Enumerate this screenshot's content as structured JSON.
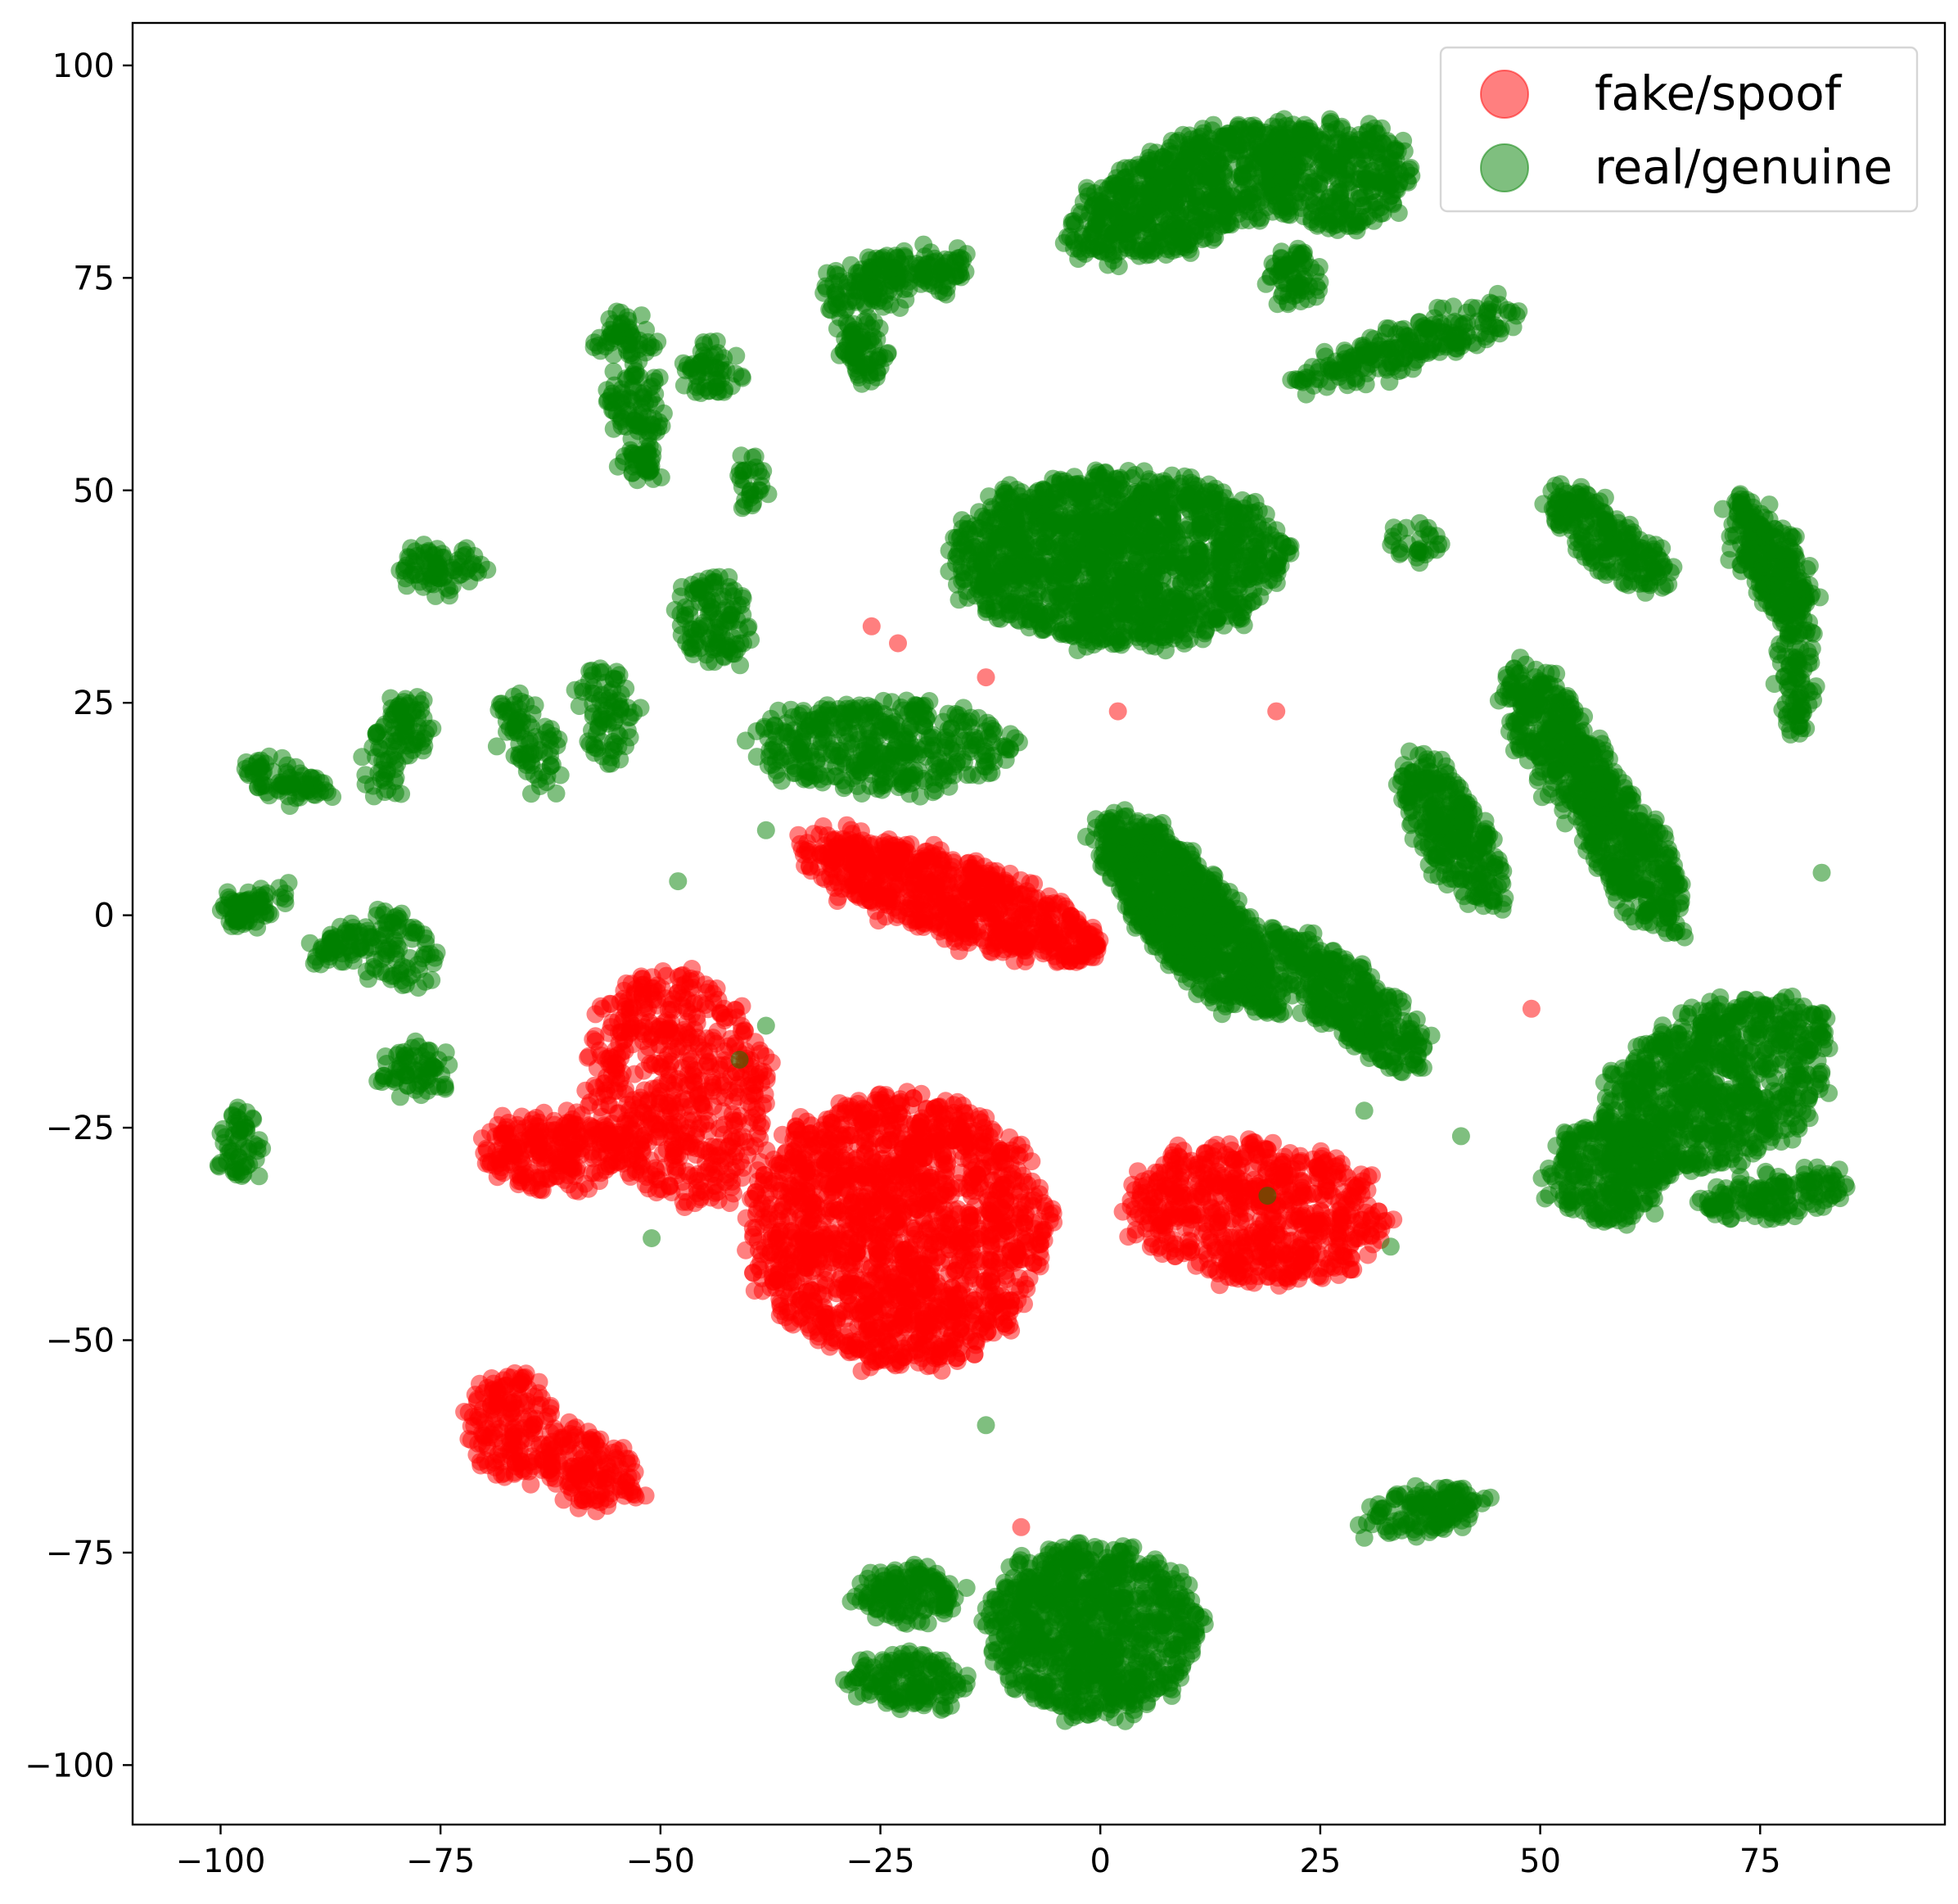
{
  "chart_data": {
    "type": "scatter",
    "title": "",
    "xlabel": "",
    "ylabel": "",
    "xlim": [
      -110,
      96
    ],
    "ylim": [
      -107,
      105
    ],
    "xticks": [
      -100,
      -75,
      -50,
      -25,
      0,
      25,
      50,
      75
    ],
    "yticks": [
      -100,
      -75,
      -50,
      -25,
      0,
      25,
      50,
      75,
      100
    ],
    "xtick_labels": [
      "−100",
      "−75",
      "−50",
      "−25",
      "0",
      "25",
      "50",
      "75"
    ],
    "ytick_labels": [
      "−100",
      "−75",
      "−50",
      "−25",
      "0",
      "25",
      "50",
      "75",
      "100"
    ],
    "grid": false,
    "legend_position": "top-right",
    "series": [
      {
        "name": "fake/spoof",
        "color": "#ff0000",
        "clusters": [
          {
            "cx": -17,
            "cy": 2,
            "rx": 18,
            "ry": 4.5,
            "angle": -20,
            "n": 750
          },
          {
            "cx": -48,
            "cy": -20,
            "rx": 10,
            "ry": 14,
            "angle": 10,
            "n": 600
          },
          {
            "cx": -62,
            "cy": -28,
            "rx": 9,
            "ry": 4.5,
            "angle": 0,
            "n": 260
          },
          {
            "cx": -23,
            "cy": -37,
            "rx": 17,
            "ry": 16,
            "angle": 0,
            "n": 1700
          },
          {
            "cx": 18,
            "cy": -35,
            "rx": 15,
            "ry": 8,
            "angle": -5,
            "n": 700
          },
          {
            "cx": -67,
            "cy": -60,
            "rx": 5,
            "ry": 6,
            "angle": 0,
            "n": 180
          },
          {
            "cx": -58,
            "cy": -65,
            "rx": 6,
            "ry": 4,
            "angle": -30,
            "n": 160
          }
        ],
        "outliers": [
          [
            -26,
            34
          ],
          [
            -23,
            32
          ],
          [
            -13,
            28
          ],
          [
            2,
            24
          ],
          [
            20,
            24
          ],
          [
            49,
            -11
          ],
          [
            -9,
            -72
          ]
        ]
      },
      {
        "name": "real/genuine",
        "color": "#008000",
        "clusters": [
          {
            "cx": 10,
            "cy": 85,
            "rx": 15,
            "ry": 6,
            "angle": 25,
            "n": 700
          },
          {
            "cx": 27,
            "cy": 87,
            "rx": 9,
            "ry": 6,
            "angle": 0,
            "n": 350
          },
          {
            "cx": 35,
            "cy": 67,
            "rx": 14,
            "ry": 2.2,
            "angle": 20,
            "n": 220
          },
          {
            "cx": 22,
            "cy": 75,
            "rx": 3,
            "ry": 3,
            "angle": 0,
            "n": 70
          },
          {
            "cx": 2,
            "cy": 42,
            "rx": 19,
            "ry": 10,
            "angle": 0,
            "n": 1500
          },
          {
            "cx": -25,
            "cy": 20,
            "rx": 15,
            "ry": 5,
            "angle": 0,
            "n": 420
          },
          {
            "cx": 10,
            "cy": 0,
            "rx": 15,
            "ry": 5,
            "angle": -50,
            "n": 900
          },
          {
            "cx": 28,
            "cy": -10,
            "rx": 12,
            "ry": 3.5,
            "angle": -40,
            "n": 380
          },
          {
            "cx": 40,
            "cy": 10,
            "rx": 10,
            "ry": 3.5,
            "angle": -60,
            "n": 300
          },
          {
            "cx": 52,
            "cy": 20,
            "rx": 11,
            "ry": 4,
            "angle": -60,
            "n": 350
          },
          {
            "cx": 60,
            "cy": 8,
            "rx": 12,
            "ry": 4,
            "angle": -60,
            "n": 350
          },
          {
            "cx": 58,
            "cy": 44,
            "rx": 9,
            "ry": 2.8,
            "angle": -40,
            "n": 220
          },
          {
            "cx": 76,
            "cy": 42,
            "rx": 8,
            "ry": 3,
            "angle": -60,
            "n": 260
          },
          {
            "cx": 79,
            "cy": 30,
            "rx": 1.8,
            "ry": 9,
            "angle": 0,
            "n": 120
          },
          {
            "cx": 70,
            "cy": -20,
            "rx": 14,
            "ry": 9,
            "angle": 30,
            "n": 800
          },
          {
            "cx": 58,
            "cy": -30,
            "rx": 7,
            "ry": 6,
            "angle": 0,
            "n": 300
          },
          {
            "cx": 77,
            "cy": -33,
            "rx": 9,
            "ry": 2,
            "angle": 10,
            "n": 150
          },
          {
            "cx": -1,
            "cy": -84,
            "rx": 12,
            "ry": 10,
            "angle": 0,
            "n": 900
          },
          {
            "cx": -22,
            "cy": -80,
            "rx": 6,
            "ry": 3,
            "angle": 0,
            "n": 150
          },
          {
            "cx": -22,
            "cy": -90,
            "rx": 7,
            "ry": 3,
            "angle": 0,
            "n": 150
          },
          {
            "cx": 37,
            "cy": -70,
            "rx": 7,
            "ry": 2.5,
            "angle": 10,
            "n": 140
          },
          {
            "cx": -24,
            "cy": 75,
            "rx": 3,
            "ry": 3,
            "angle": 0,
            "n": 80
          },
          {
            "cx": -18,
            "cy": 76,
            "rx": 3,
            "ry": 2,
            "angle": 0,
            "n": 60
          },
          {
            "cx": -28,
            "cy": 72,
            "rx": 3,
            "ry": 4,
            "angle": 0,
            "n": 70
          },
          {
            "cx": -27,
            "cy": 66,
            "rx": 2.5,
            "ry": 3,
            "angle": 0,
            "n": 60
          },
          {
            "cx": -53,
            "cy": 60,
            "rx": 3,
            "ry": 4,
            "angle": 0,
            "n": 80
          },
          {
            "cx": -54,
            "cy": 68,
            "rx": 3,
            "ry": 3,
            "angle": 30,
            "n": 60
          },
          {
            "cx": -44,
            "cy": 64,
            "rx": 3,
            "ry": 3,
            "angle": 0,
            "n": 60
          },
          {
            "cx": -52,
            "cy": 53,
            "rx": 2.5,
            "ry": 1.5,
            "angle": 0,
            "n": 40
          },
          {
            "cx": -40,
            "cy": 51,
            "rx": 1.5,
            "ry": 3,
            "angle": 0,
            "n": 30
          },
          {
            "cx": -44,
            "cy": 35,
            "rx": 4,
            "ry": 5,
            "angle": 10,
            "n": 120
          },
          {
            "cx": -75,
            "cy": 41,
            "rx": 5,
            "ry": 2.5,
            "angle": 0,
            "n": 80
          },
          {
            "cx": -56,
            "cy": 24,
            "rx": 2.5,
            "ry": 6,
            "angle": 0,
            "n": 80
          },
          {
            "cx": -65,
            "cy": 20,
            "rx": 2.5,
            "ry": 6,
            "angle": 20,
            "n": 80
          },
          {
            "cx": -80,
            "cy": 20,
            "rx": 3,
            "ry": 6,
            "angle": -20,
            "n": 100
          },
          {
            "cx": -93,
            "cy": 16,
            "rx": 5,
            "ry": 2,
            "angle": -20,
            "n": 80
          },
          {
            "cx": -96,
            "cy": 1,
            "rx": 4,
            "ry": 2,
            "angle": 20,
            "n": 70
          },
          {
            "cx": -86,
            "cy": -4,
            "rx": 4,
            "ry": 2,
            "angle": 20,
            "n": 60
          },
          {
            "cx": -80,
            "cy": -4,
            "rx": 4,
            "ry": 5,
            "angle": 30,
            "n": 80
          },
          {
            "cx": -78,
            "cy": -18,
            "rx": 4,
            "ry": 3,
            "angle": 20,
            "n": 70
          },
          {
            "cx": -98,
            "cy": -27,
            "rx": 2.5,
            "ry": 4,
            "angle": 0,
            "n": 60
          },
          {
            "cx": 36,
            "cy": 44,
            "rx": 3,
            "ry": 2,
            "angle": 0,
            "n": 30
          }
        ],
        "outliers": [
          [
            -38,
            10
          ],
          [
            -48,
            4
          ],
          [
            -51,
            -38
          ],
          [
            -38,
            -13
          ],
          [
            -41,
            -17
          ],
          [
            -13,
            -60
          ],
          [
            19,
            -33
          ],
          [
            30,
            -23
          ],
          [
            41,
            -26
          ],
          [
            33,
            -39
          ],
          [
            82,
            5
          ]
        ]
      }
    ]
  },
  "legend": {
    "entries": [
      "fake/spoof",
      "real/genuine"
    ]
  }
}
